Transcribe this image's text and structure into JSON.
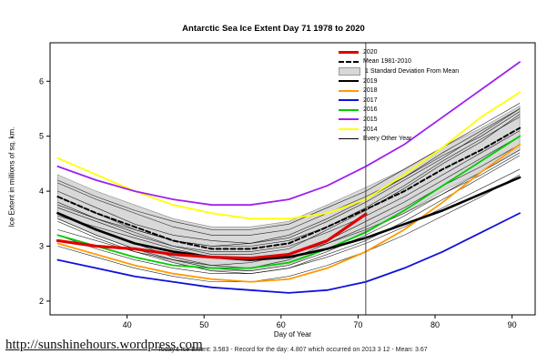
{
  "page": {
    "url_text": "http://sunshinehours.wordpress.com",
    "caption": "Today's Ice Extent: 3.583  - Record for the day: 4.807 which occurred on 2013 3 12  - Mean: 3.67"
  },
  "legend": [
    {
      "label": "2020",
      "color": "#e00000",
      "lw": 3
    },
    {
      "label": "Mean 1981-2010",
      "color": "#000000",
      "lw": 2,
      "dash": true
    },
    {
      "label": "1 Standard Deviation From Mean",
      "color": "#d8d8d8",
      "swatch": "box"
    },
    {
      "label": "2019",
      "color": "#000000",
      "lw": 2.5
    },
    {
      "label": "2018",
      "color": "#ff9a00",
      "lw": 2
    },
    {
      "label": "2017",
      "color": "#1010dd",
      "lw": 2
    },
    {
      "label": "2016",
      "color": "#00cc00",
      "lw": 2
    },
    {
      "label": "2015",
      "color": "#a020f0",
      "lw": 2
    },
    {
      "label": "2014",
      "color": "#ffff00",
      "lw": 2
    },
    {
      "label": "Every Other Year",
      "color": "#000000",
      "lw": 0.7
    }
  ],
  "chart_data": {
    "type": "line",
    "title": "Antarctic Sea Ice Extent Day 71 1978 to 2020",
    "xlabel": "Day of Year",
    "ylabel": "Ice Extent in millions of sq. km.",
    "xlim": [
      30,
      93
    ],
    "ylim": [
      1.75,
      6.7
    ],
    "xticks": [
      40,
      50,
      60,
      70,
      80,
      90
    ],
    "yticks": [
      2,
      3,
      4,
      5,
      6
    ],
    "vline_x": 71,
    "grid": false,
    "legend_position": "top-center-right",
    "x": [
      31,
      36,
      41,
      46,
      51,
      56,
      61,
      66,
      71,
      76,
      81,
      86,
      91
    ],
    "std_band": {
      "label": "1 Standard Deviation From Mean",
      "color": "#d8d8d8",
      "upper": [
        4.3,
        4.0,
        3.75,
        3.5,
        3.35,
        3.35,
        3.45,
        3.75,
        4.07,
        4.4,
        4.8,
        5.15,
        5.55
      ],
      "lower": [
        3.5,
        3.2,
        2.95,
        2.7,
        2.55,
        2.55,
        2.65,
        2.95,
        3.27,
        3.6,
        4.0,
        4.35,
        4.75
      ]
    },
    "series": [
      {
        "name": "2020",
        "color": "#e00000",
        "width": 3.2,
        "dash": null,
        "values": [
          3.1,
          3.0,
          2.95,
          2.85,
          2.8,
          2.78,
          2.85,
          3.1,
          3.583,
          null,
          null,
          null,
          null
        ]
      },
      {
        "name": "Mean 1981-2010",
        "color": "#000000",
        "width": 2,
        "dash": "5,3",
        "values": [
          3.9,
          3.6,
          3.35,
          3.1,
          2.95,
          2.95,
          3.05,
          3.35,
          3.67,
          4.0,
          4.4,
          4.75,
          5.15
        ]
      },
      {
        "name": "2019",
        "color": "#000000",
        "width": 2.6,
        "dash": null,
        "values": [
          3.6,
          3.3,
          3.05,
          2.9,
          2.8,
          2.75,
          2.8,
          2.95,
          3.15,
          3.4,
          3.65,
          3.95,
          4.25
        ]
      },
      {
        "name": "2018",
        "color": "#ff9a00",
        "width": 1.8,
        "dash": null,
        "values": [
          3.05,
          2.85,
          2.65,
          2.5,
          2.4,
          2.35,
          2.4,
          2.6,
          2.9,
          3.3,
          3.8,
          4.35,
          4.85
        ]
      },
      {
        "name": "2017",
        "color": "#1010dd",
        "width": 1.8,
        "dash": null,
        "values": [
          2.75,
          2.6,
          2.45,
          2.35,
          2.25,
          2.2,
          2.15,
          2.2,
          2.35,
          2.6,
          2.9,
          3.25,
          3.6
        ]
      },
      {
        "name": "2016",
        "color": "#00cc00",
        "width": 1.8,
        "dash": null,
        "values": [
          3.2,
          3.0,
          2.8,
          2.65,
          2.6,
          2.6,
          2.7,
          2.95,
          3.25,
          3.65,
          4.1,
          4.55,
          5.0
        ]
      },
      {
        "name": "2015",
        "color": "#a020f0",
        "width": 1.8,
        "dash": null,
        "values": [
          4.45,
          4.2,
          4.0,
          3.85,
          3.75,
          3.75,
          3.85,
          4.1,
          4.45,
          4.85,
          5.35,
          5.85,
          6.35
        ]
      },
      {
        "name": "2014",
        "color": "#ffff00",
        "width": 1.8,
        "dash": null,
        "values": [
          4.6,
          4.3,
          4.0,
          3.75,
          3.6,
          3.5,
          3.5,
          3.6,
          3.85,
          4.3,
          4.8,
          5.35,
          5.8
        ]
      }
    ],
    "other_years": {
      "label": "Every Other Year",
      "color": "#000000",
      "width": 0.6,
      "values": [
        [
          3.8,
          3.5,
          3.25,
          3.0,
          2.85,
          2.85,
          2.95,
          3.3,
          3.65,
          4.05,
          4.5,
          4.9,
          5.4
        ],
        [
          4.15,
          3.85,
          3.6,
          3.35,
          3.2,
          3.2,
          3.3,
          3.6,
          3.9,
          4.25,
          4.65,
          5.0,
          5.45
        ],
        [
          3.6,
          3.3,
          3.05,
          2.8,
          2.65,
          2.6,
          2.75,
          3.05,
          3.35,
          3.7,
          4.1,
          4.45,
          4.85
        ],
        [
          3.3,
          3.1,
          2.9,
          2.75,
          2.65,
          2.7,
          2.85,
          3.1,
          3.45,
          3.8,
          4.2,
          4.6,
          5.0
        ],
        [
          4.0,
          3.7,
          3.4,
          3.2,
          3.1,
          3.05,
          3.15,
          3.45,
          3.8,
          4.2,
          4.6,
          5.05,
          5.5
        ],
        [
          3.5,
          3.2,
          2.95,
          2.75,
          2.6,
          2.55,
          2.65,
          2.9,
          3.2,
          3.55,
          3.95,
          4.35,
          4.75
        ],
        [
          3.7,
          3.45,
          3.2,
          3.0,
          2.9,
          2.9,
          3.0,
          3.25,
          3.55,
          3.9,
          4.3,
          4.7,
          5.1
        ],
        [
          3.45,
          3.15,
          2.9,
          2.7,
          2.55,
          2.5,
          2.6,
          2.85,
          3.1,
          3.45,
          3.85,
          4.25,
          4.65
        ],
        [
          3.9,
          3.6,
          3.3,
          3.1,
          3.0,
          3.0,
          3.1,
          3.35,
          3.7,
          4.1,
          4.55,
          4.95,
          5.35
        ],
        [
          3.2,
          2.95,
          2.75,
          2.6,
          2.5,
          2.5,
          2.6,
          2.8,
          3.05,
          3.35,
          3.7,
          4.05,
          4.4
        ],
        [
          4.2,
          3.9,
          3.65,
          3.45,
          3.3,
          3.3,
          3.4,
          3.7,
          4.0,
          4.4,
          4.8,
          5.2,
          5.6
        ],
        [
          3.0,
          2.8,
          2.6,
          2.45,
          2.35,
          2.35,
          2.45,
          2.65,
          2.9,
          3.2,
          3.55,
          3.9,
          4.3
        ],
        [
          3.55,
          3.35,
          3.15,
          2.95,
          2.8,
          2.75,
          2.85,
          3.05,
          3.3,
          3.6,
          3.95,
          4.3,
          4.7
        ],
        [
          3.75,
          3.5,
          3.3,
          3.1,
          3.0,
          3.05,
          3.2,
          3.5,
          3.85,
          4.25,
          4.7,
          5.1,
          5.5
        ]
      ]
    }
  }
}
